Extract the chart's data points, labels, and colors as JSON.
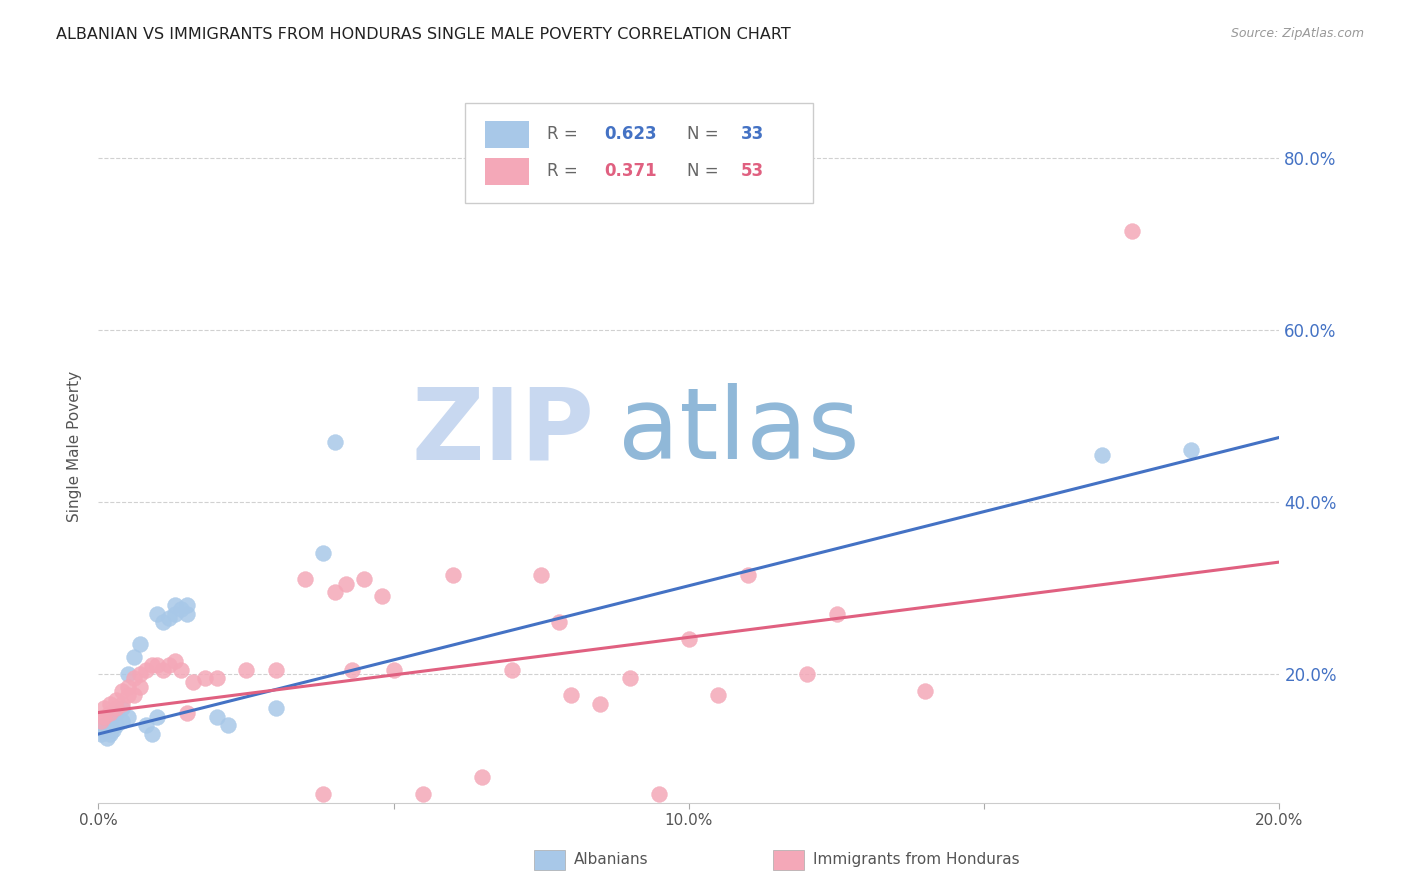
{
  "title": "ALBANIAN VS IMMIGRANTS FROM HONDURAS SINGLE MALE POVERTY CORRELATION CHART",
  "source": "Source: ZipAtlas.com",
  "ylabel": "Single Male Poverty",
  "legend_blue_r": "0.623",
  "legend_blue_n": "33",
  "legend_pink_r": "0.371",
  "legend_pink_n": "53",
  "legend_blue_label": "Albanians",
  "legend_pink_label": "Immigrants from Honduras",
  "watermark_zip": "ZIP",
  "watermark_atlas": "atlas",
  "xlim": [
    0.0,
    0.2
  ],
  "ylim": [
    0.05,
    0.88
  ],
  "right_yticks": [
    0.2,
    0.4,
    0.6,
    0.8
  ],
  "right_yticklabels": [
    "20.0%",
    "40.0%",
    "60.0%",
    "80.0%"
  ],
  "xticks": [
    0.0,
    0.05,
    0.1,
    0.15,
    0.2
  ],
  "xticklabels": [
    "0.0%",
    "",
    "10.0%",
    "",
    "20.0%"
  ],
  "blue_color": "#a8c8e8",
  "blue_line_color": "#4472c4",
  "pink_color": "#f4a8b8",
  "pink_line_color": "#e06080",
  "grid_color": "#cccccc",
  "bg_color": "#ffffff",
  "title_color": "#222222",
  "right_tick_color": "#4472c4",
  "watermark_zip_color": "#c8d8f0",
  "watermark_atlas_color": "#90b8d8",
  "blue_scatter": [
    [
      0.0005,
      0.13
    ],
    [
      0.001,
      0.135
    ],
    [
      0.001,
      0.14
    ],
    [
      0.0015,
      0.125
    ],
    [
      0.002,
      0.13
    ],
    [
      0.002,
      0.145
    ],
    [
      0.0025,
      0.135
    ],
    [
      0.003,
      0.14
    ],
    [
      0.003,
      0.155
    ],
    [
      0.004,
      0.145
    ],
    [
      0.004,
      0.16
    ],
    [
      0.005,
      0.15
    ],
    [
      0.005,
      0.2
    ],
    [
      0.006,
      0.22
    ],
    [
      0.007,
      0.235
    ],
    [
      0.008,
      0.14
    ],
    [
      0.009,
      0.13
    ],
    [
      0.01,
      0.15
    ],
    [
      0.01,
      0.27
    ],
    [
      0.011,
      0.26
    ],
    [
      0.012,
      0.265
    ],
    [
      0.013,
      0.27
    ],
    [
      0.013,
      0.28
    ],
    [
      0.014,
      0.275
    ],
    [
      0.015,
      0.27
    ],
    [
      0.015,
      0.28
    ],
    [
      0.02,
      0.15
    ],
    [
      0.022,
      0.14
    ],
    [
      0.03,
      0.16
    ],
    [
      0.038,
      0.34
    ],
    [
      0.04,
      0.47
    ],
    [
      0.17,
      0.455
    ],
    [
      0.185,
      0.46
    ]
  ],
  "pink_scatter": [
    [
      0.0005,
      0.145
    ],
    [
      0.001,
      0.15
    ],
    [
      0.001,
      0.16
    ],
    [
      0.002,
      0.155
    ],
    [
      0.002,
      0.165
    ],
    [
      0.003,
      0.16
    ],
    [
      0.003,
      0.17
    ],
    [
      0.004,
      0.165
    ],
    [
      0.004,
      0.18
    ],
    [
      0.005,
      0.175
    ],
    [
      0.005,
      0.185
    ],
    [
      0.006,
      0.175
    ],
    [
      0.006,
      0.195
    ],
    [
      0.007,
      0.185
    ],
    [
      0.007,
      0.2
    ],
    [
      0.008,
      0.205
    ],
    [
      0.009,
      0.21
    ],
    [
      0.01,
      0.21
    ],
    [
      0.011,
      0.205
    ],
    [
      0.012,
      0.21
    ],
    [
      0.013,
      0.215
    ],
    [
      0.014,
      0.205
    ],
    [
      0.015,
      0.155
    ],
    [
      0.016,
      0.19
    ],
    [
      0.018,
      0.195
    ],
    [
      0.02,
      0.195
    ],
    [
      0.025,
      0.205
    ],
    [
      0.03,
      0.205
    ],
    [
      0.035,
      0.31
    ],
    [
      0.038,
      0.06
    ],
    [
      0.04,
      0.295
    ],
    [
      0.042,
      0.305
    ],
    [
      0.043,
      0.205
    ],
    [
      0.045,
      0.31
    ],
    [
      0.048,
      0.29
    ],
    [
      0.05,
      0.205
    ],
    [
      0.055,
      0.06
    ],
    [
      0.06,
      0.315
    ],
    [
      0.065,
      0.08
    ],
    [
      0.07,
      0.205
    ],
    [
      0.075,
      0.315
    ],
    [
      0.078,
      0.26
    ],
    [
      0.08,
      0.175
    ],
    [
      0.085,
      0.165
    ],
    [
      0.09,
      0.195
    ],
    [
      0.095,
      0.06
    ],
    [
      0.1,
      0.24
    ],
    [
      0.105,
      0.175
    ],
    [
      0.11,
      0.315
    ],
    [
      0.12,
      0.2
    ],
    [
      0.125,
      0.27
    ],
    [
      0.14,
      0.18
    ],
    [
      0.175,
      0.715
    ]
  ],
  "blue_line_x": [
    0.0,
    0.2
  ],
  "blue_line_y": [
    0.13,
    0.475
  ],
  "pink_line_x": [
    0.0,
    0.2
  ],
  "pink_line_y": [
    0.155,
    0.33
  ]
}
